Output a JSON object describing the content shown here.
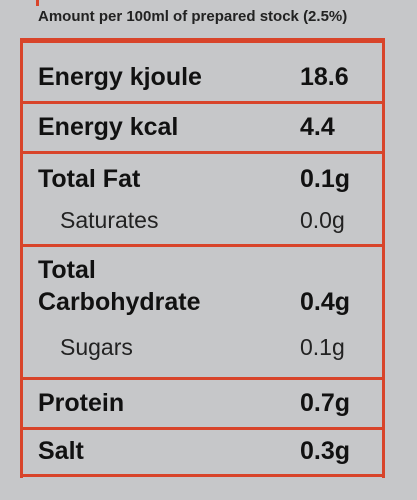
{
  "header": {
    "title": "Amount per 100ml of prepared stock (2.5%)"
  },
  "rows": [
    {
      "label": [
        "Energy kjoule"
      ],
      "value": "18.6",
      "sub": false
    },
    {
      "label": [
        "Energy kcal"
      ],
      "value": "4.4",
      "sub": false
    },
    {
      "label": [
        "Total Fat"
      ],
      "value": "0.1g",
      "sub": false
    },
    {
      "label": [
        "Saturates"
      ],
      "value": "0.0g",
      "sub": true
    },
    {
      "label": [
        "Total",
        "Carbohydrate"
      ],
      "value": "0.4g",
      "sub": false
    },
    {
      "label": [
        "Sugars"
      ],
      "value": "0.1g",
      "sub": true
    },
    {
      "label": [
        "Protein"
      ],
      "value": "0.7g",
      "sub": false
    },
    {
      "label": [
        "Salt"
      ],
      "value": "0.3g",
      "sub": false
    }
  ]
}
